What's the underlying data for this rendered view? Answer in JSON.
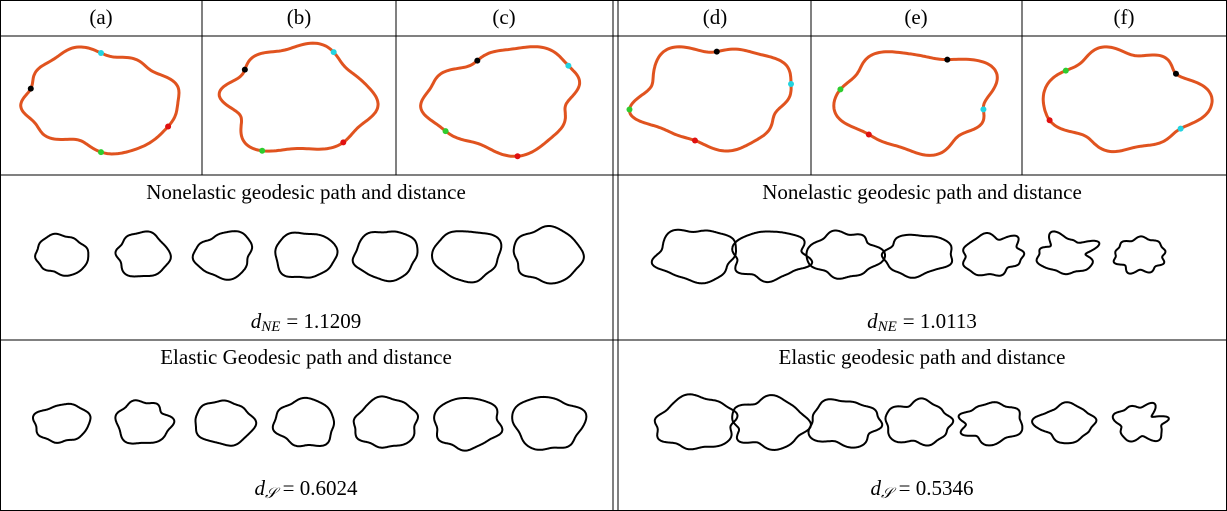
{
  "panels": [
    "(a)",
    "(b)",
    "(c)",
    "(d)",
    "(e)",
    "(f)"
  ],
  "left": {
    "nonelastic": {
      "title": "Nonelastic geodesic path and distance",
      "symbol": "d",
      "subscript": "NE",
      "rhs": "= 1.1209"
    },
    "elastic": {
      "title": "Elastic Geodesic path and distance",
      "symbol": "d",
      "subscript": "𝒮",
      "rhs": "= 0.6024"
    }
  },
  "right": {
    "nonelastic": {
      "title": "Nonelastic geodesic path and distance",
      "symbol": "d",
      "subscript": "NE",
      "rhs": "= 1.0113"
    },
    "elastic": {
      "title": "Elastic geodesic path and distance",
      "symbol": "d",
      "subscript": "𝒮",
      "rhs": "= 0.5346"
    }
  }
}
